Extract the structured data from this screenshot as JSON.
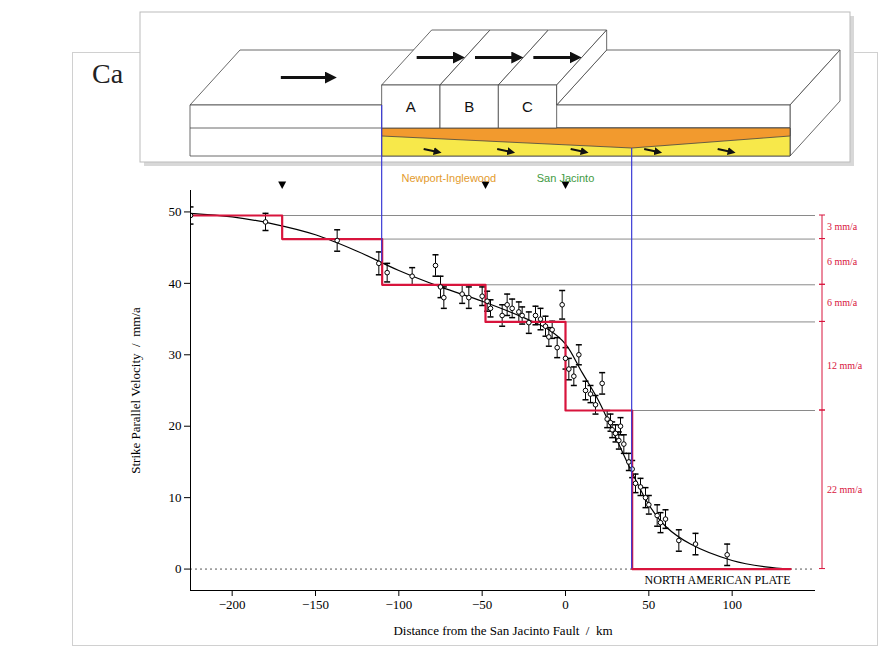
{
  "chart_data": {
    "type": "scatter",
    "title": "Ca",
    "x_label": "Distance from the San Jacinto Fault  /  km",
    "y_label": "Strike Parallel Velocity  /  mm/a",
    "xlim": [
      -225,
      150
    ],
    "xticks": [
      -200,
      -150,
      -100,
      -50,
      0,
      50,
      100
    ],
    "ylim": [
      -3,
      53
    ],
    "yticks": [
      0,
      10,
      20,
      30,
      40,
      50
    ],
    "grid": false,
    "marker": "circle",
    "measurements": {
      "color": "#000000",
      "x": [
        -225,
        -180,
        -137,
        -112,
        -107,
        -92,
        -78,
        -75,
        -73,
        -62,
        -58,
        -50,
        -47,
        -45,
        -38,
        -35,
        -32,
        -28,
        -26,
        -22,
        -18,
        -15,
        -12,
        -10,
        -8,
        -5,
        -2,
        0,
        2,
        5,
        8,
        12,
        15,
        18,
        22,
        25,
        27,
        28,
        30,
        32,
        33,
        35,
        38,
        40,
        42,
        45,
        48,
        50,
        55,
        57,
        60,
        68,
        78,
        97
      ],
      "values": [
        49.5,
        48.6,
        46.0,
        42.8,
        41.5,
        41.0,
        42.5,
        39.5,
        38.0,
        38.5,
        38.0,
        38.2,
        37.5,
        36.5,
        35.5,
        37.0,
        36.5,
        36.0,
        35.5,
        34.5,
        35.5,
        35.0,
        34.0,
        32.5,
        33.5,
        31.0,
        37.0,
        29.5,
        28.0,
        27.0,
        30.0,
        25.0,
        24.5,
        23.0,
        26.0,
        21.0,
        20.5,
        19.5,
        19.0,
        18.0,
        20.0,
        17.5,
        15.0,
        14.0,
        12.0,
        11.5,
        10.0,
        9.0,
        7.5,
        6.5,
        7.0,
        4.0,
        3.5,
        2.0
      ],
      "errors": [
        1.2,
        1.2,
        1.5,
        1.6,
        1.3,
        1.2,
        1.5,
        1.5,
        1.5,
        1.3,
        1.5,
        1.3,
        1.4,
        1.2,
        1.5,
        1.5,
        1.3,
        1.4,
        1.2,
        1.5,
        1.3,
        1.5,
        1.4,
        1.3,
        1.2,
        1.4,
        2.0,
        1.5,
        1.5,
        1.3,
        1.4,
        1.3,
        1.2,
        1.3,
        1.5,
        1.2,
        1.2,
        1.1,
        1.2,
        1.2,
        1.2,
        1.3,
        1.2,
        1.2,
        1.3,
        1.2,
        1.4,
        1.3,
        1.5,
        1.4,
        1.3,
        1.5,
        1.5,
        1.5
      ]
    },
    "fit_curve": {
      "color": "#000000",
      "line_style": "solid",
      "x": [
        -225,
        -200,
        -175,
        -150,
        -125,
        -100,
        -75,
        -50,
        -25,
        -10,
        0,
        10,
        20,
        30,
        40,
        50,
        60,
        75,
        100,
        120,
        135
      ],
      "values": [
        49.8,
        49.3,
        48.3,
        46.8,
        44.5,
        41.8,
        39.5,
        37.5,
        35.2,
        33.5,
        31.5,
        27.5,
        23.5,
        18.5,
        13.5,
        9.0,
        6.0,
        3.5,
        1.2,
        0.3,
        0.0
      ]
    },
    "step_model": {
      "color": "#d8143c",
      "x_edges": [
        -225,
        -170,
        -110,
        -48,
        0,
        40,
        135
      ],
      "values": [
        49.5,
        46.2,
        39.8,
        34.6,
        22.2,
        0
      ]
    },
    "rate_labels": [
      "3 mm/a",
      "6 mm/a",
      "6 mm/a",
      "12 mm/a",
      "22 mm/a"
    ],
    "fault_markers_x": [
      -170,
      -48,
      0
    ],
    "fault_labels": [
      {
        "text": "Newport-Inglewood",
        "x": -70,
        "color": "#e39b2d"
      },
      {
        "text": "San Jacinto",
        "x": 0,
        "color": "#3f9a3f"
      }
    ],
    "plate_label": {
      "text": "NORTH AMERICAN PLATE",
      "x": 135,
      "y": -1.5
    },
    "connectors": [
      {
        "x": -110,
        "y": 43
      },
      {
        "x": 40,
        "y": 0
      }
    ],
    "diagram": {
      "block_labels": [
        "A",
        "B",
        "C"
      ],
      "block_edges_x": [
        -110,
        -75,
        -40,
        -5
      ]
    }
  }
}
